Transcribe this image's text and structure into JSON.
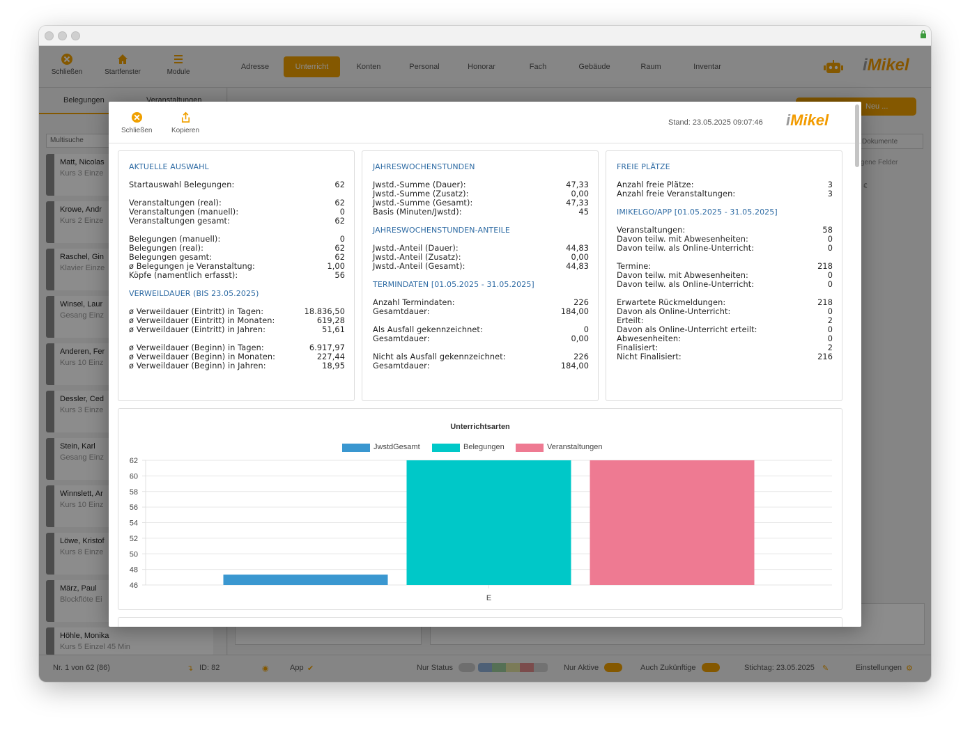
{
  "toolbar": {
    "close_label": "Schließen",
    "home_label": "Startfenster",
    "modules_label": "Module"
  },
  "nav": [
    "Adresse",
    "Unterricht",
    "Konten",
    "Personal",
    "Honorar",
    "Fach",
    "Gebäude",
    "Raum",
    "Inventar"
  ],
  "logo": {
    "i": "i",
    "text": "Mikel"
  },
  "left": {
    "tabs": [
      "Belegungen",
      "Veranstaltungen"
    ],
    "search_placeholder": "Multisuche",
    "items": [
      {
        "name": "Matt, Nicolas",
        "sub": "Kurs 3 Einze"
      },
      {
        "name": "Krowe, Andr",
        "sub": "Kurs 2 Einze"
      },
      {
        "name": "Raschel, Gin",
        "sub": "Klavier Einze"
      },
      {
        "name": "Winsel, Laur",
        "sub": "Gesang Einz"
      },
      {
        "name": "Anderen, Fer",
        "sub": "Kurs 10 Einz"
      },
      {
        "name": "Dessler, Ced",
        "sub": "Kurs 3 Einze"
      },
      {
        "name": "Stein, Karl",
        "sub": "Gesang Einz"
      },
      {
        "name": "Winnslett, Ar",
        "sub": "Kurs 10 Einz"
      },
      {
        "name": "Löwe, Kristof",
        "sub": "Kurs 8 Einze"
      },
      {
        "name": "März, Paul",
        "sub": "Blockflöte Ei"
      },
      {
        "name": "Höhle, Monika",
        "sub": "Kurs 5 Einzel 45 Min"
      }
    ]
  },
  "right_bg": {
    "new_label": "Neu ...",
    "documents": "Dokumente",
    "fields": "gene Felder",
    "euro": "€"
  },
  "statusbar": {
    "record": "Nr. 1 von 62 (86)",
    "id": "ID: 82",
    "app": "App",
    "nur_status": "Nur Status",
    "nur_aktive": "Nur Aktive",
    "auch_zukuenftige": "Auch Zukünftige",
    "stichtag": "Stichtag: 23.05.2025",
    "settings": "Einstellungen"
  },
  "modal": {
    "close_label": "Schließen",
    "copy_label": "Kopieren",
    "stand": "Stand: 23.05.2025 09:07:46",
    "card1": {
      "sec1": "AKTUELLE AUSWAHL",
      "rows1": [
        {
          "l": "Startauswahl Belegungen:",
          "v": "62"
        },
        {
          "l": "Veranstaltungen (real):",
          "v": "62"
        },
        {
          "l": "Veranstaltungen (manuell):",
          "v": "0"
        },
        {
          "l": "Veranstaltungen gesamt:",
          "v": "62"
        },
        {
          "l": "Belegungen (manuell):",
          "v": "0"
        },
        {
          "l": "Belegungen (real):",
          "v": "62"
        },
        {
          "l": "Belegungen gesamt:",
          "v": "62"
        },
        {
          "l": "ø Belegungen je Veranstaltung:",
          "v": "1,00"
        },
        {
          "l": "Köpfe (namentlich erfasst):",
          "v": "56"
        }
      ],
      "sec2": "VERWEILDAUER (BIS 23.05.2025)",
      "rows2": [
        {
          "l": "ø Verweildauer (Eintritt) in Tagen:",
          "v": "18.836,50"
        },
        {
          "l": "ø Verweildauer (Eintritt) in Monaten:",
          "v": "619,28"
        },
        {
          "l": "ø Verweildauer (Eintritt) in Jahren:",
          "v": "51,61"
        },
        {
          "l": "ø Verweildauer (Beginn) in Tagen:",
          "v": "6.917,97"
        },
        {
          "l": "ø Verweildauer (Beginn) in Monaten:",
          "v": "227,44"
        },
        {
          "l": "ø Verweildauer (Beginn) in Jahren:",
          "v": "18,95"
        }
      ]
    },
    "card2": {
      "sec1": "JAHRESWOCHENSTUNDEN",
      "rows1": [
        {
          "l": "Jwstd.-Summe (Dauer):",
          "v": "47,33"
        },
        {
          "l": "Jwstd.-Summe (Zusatz):",
          "v": "0,00"
        },
        {
          "l": "Jwstd.-Summe (Gesamt):",
          "v": "47,33"
        },
        {
          "l": "Basis (Minuten/Jwstd):",
          "v": "45"
        }
      ],
      "sec2": "JAHRESWOCHENSTUNDEN-ANTEILE",
      "rows2": [
        {
          "l": "Jwstd.-Anteil (Dauer):",
          "v": "44,83"
        },
        {
          "l": "Jwstd.-Anteil (Zusatz):",
          "v": "0,00"
        },
        {
          "l": "Jwstd.-Anteil (Gesamt):",
          "v": "44,83"
        }
      ],
      "sec3": "TERMINDATEN [01.05.2025 - 31.05.2025]",
      "rows3": [
        {
          "l": "Anzahl Termindaten:",
          "v": "226"
        },
        {
          "l": "Gesamtdauer:",
          "v": "184,00"
        },
        {
          "l": "Als Ausfall gekennzeichnet:",
          "v": "0"
        },
        {
          "l": "Gesamtdauer:",
          "v": "0,00"
        },
        {
          "l": "Nicht als Ausfall gekennzeichnet:",
          "v": "226"
        },
        {
          "l": "Gesamtdauer:",
          "v": "184,00"
        }
      ]
    },
    "card3": {
      "sec1": "FREIE PLÄTZE",
      "rows1": [
        {
          "l": "Anzahl freie Plätze:",
          "v": "3"
        },
        {
          "l": "Anzahl freie Veranstaltungen:",
          "v": "3"
        }
      ],
      "sec2": "IMIKELGO/APP [01.05.2025 - 31.05.2025]",
      "rows2": [
        {
          "l": "Veranstaltungen:",
          "v": "58"
        },
        {
          "l": "Davon teilw. mit Abwesenheiten:",
          "v": "0"
        },
        {
          "l": "Davon teilw. als Online-Unterricht:",
          "v": "0"
        },
        {
          "l": "Termine:",
          "v": "218"
        },
        {
          "l": "Davon teilw. mit Abwesenheiten:",
          "v": "0"
        },
        {
          "l": "Davon teilw. als Online-Unterricht:",
          "v": "0"
        },
        {
          "l": "Erwartete Rückmeldungen:",
          "v": "218"
        },
        {
          "l": "Davon als Online-Unterricht:",
          "v": "0"
        },
        {
          "l": "Erteilt:",
          "v": "2"
        },
        {
          "l": "Davon als Online-Unterricht erteilt:",
          "v": "0"
        },
        {
          "l": "Abwesenheiten:",
          "v": "0"
        },
        {
          "l": "Finalisiert:",
          "v": "2"
        },
        {
          "l": "Nicht Finalisiert:",
          "v": "216"
        }
      ]
    }
  },
  "chart_data": {
    "type": "bar",
    "title": "Unterrichtsarten",
    "categories": [
      "E"
    ],
    "series": [
      {
        "name": "JwstdGesamt",
        "values": [
          47.33
        ],
        "color": "#3a97d0"
      },
      {
        "name": "Belegungen",
        "values": [
          62
        ],
        "color": "#00c8c8"
      },
      {
        "name": "Veranstaltungen",
        "values": [
          62
        ],
        "color": "#ee7a92"
      }
    ],
    "ylim": [
      46,
      62
    ],
    "yticks": [
      "62",
      "60",
      "58",
      "56",
      "54",
      "52",
      "50",
      "48",
      "46"
    ],
    "legend": "top-center",
    "grid": true
  }
}
